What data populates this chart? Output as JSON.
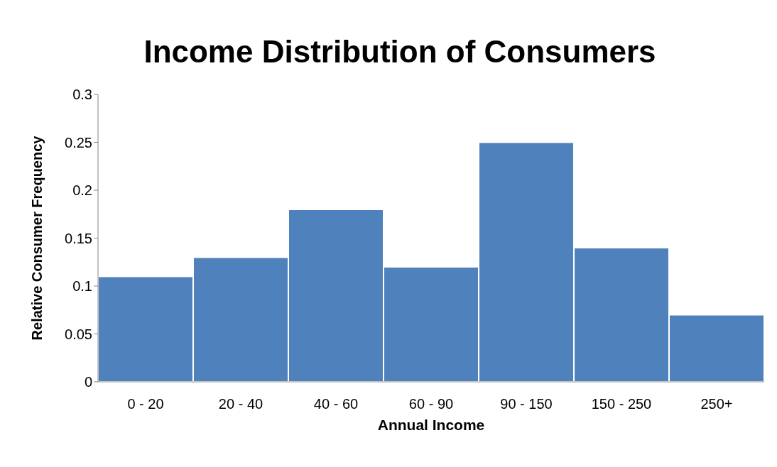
{
  "chart_data": {
    "type": "bar",
    "title": "Income Distribution of Consumers",
    "xlabel": "Annual Income",
    "ylabel": "Relative Consumer Frequency",
    "categories": [
      "0 - 20",
      "20 - 40",
      "40 - 60",
      "60 - 90",
      "90 - 150",
      "150 - 250",
      "250+"
    ],
    "values": [
      0.11,
      0.13,
      0.18,
      0.12,
      0.25,
      0.14,
      0.07
    ],
    "color": "#4f81bd",
    "ylim": [
      0,
      0.3
    ],
    "yticks": [
      0,
      0.05,
      0.1,
      0.15,
      0.2,
      0.25,
      0.3
    ]
  }
}
